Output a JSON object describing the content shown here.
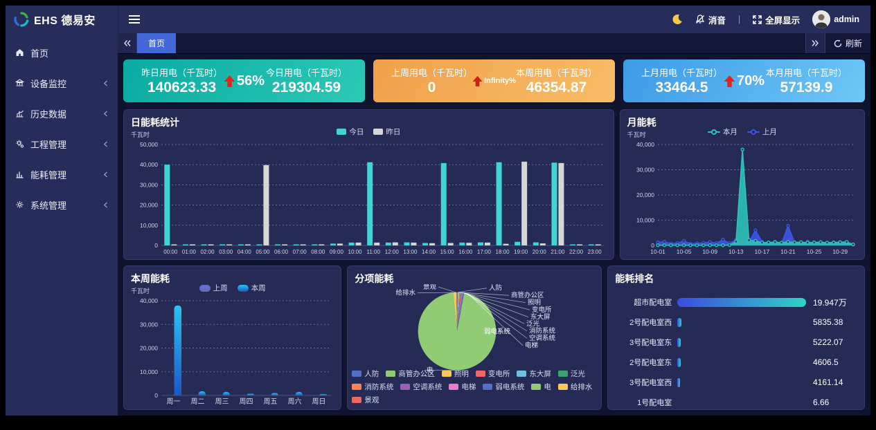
{
  "navbar": {
    "logo_text": "EHS 德易安",
    "mute_label": "消音",
    "separator": "|",
    "fullscreen_label": "全屏显示",
    "username": "admin"
  },
  "sidebar": {
    "items": [
      {
        "label": "首页",
        "icon": "home-icon",
        "expandable": false
      },
      {
        "label": "设备监控",
        "icon": "device-monitor-icon",
        "expandable": true
      },
      {
        "label": "历史数据",
        "icon": "history-data-icon",
        "expandable": true
      },
      {
        "label": "工程管理",
        "icon": "project-manage-icon",
        "expandable": true
      },
      {
        "label": "能耗管理",
        "icon": "energy-manage-icon",
        "expandable": true
      },
      {
        "label": "系统管理",
        "icon": "system-manage-icon",
        "expandable": true
      }
    ]
  },
  "tabbar": {
    "active_tab": "首页",
    "refresh_label": "刷新"
  },
  "kpi_cards": [
    {
      "left_label": "昨日用电（千瓦时）",
      "left_value": "140623.33",
      "delta": "56%",
      "right_label": "今日用电（千瓦时）",
      "right_value": "219304.59",
      "gradient": [
        "#0baaa2",
        "#2cc9b6"
      ],
      "delta_color": "#e0251c"
    },
    {
      "left_label": "上周用电（千瓦时）",
      "left_value": "0",
      "delta": "Infinity%",
      "right_label": "本周用电（千瓦时）",
      "right_value": "46354.87",
      "gradient": [
        "#f0a04b",
        "#f8bc66"
      ],
      "delta_color": "#d01f16"
    },
    {
      "left_label": "上月用电（千瓦时）",
      "left_value": "33464.5",
      "delta": "70%",
      "right_label": "本月用电（千瓦时）",
      "right_value": "57139.9",
      "gradient": [
        "#3d9ae6",
        "#6ec7f6"
      ],
      "delta_color": "#e0251c"
    }
  ],
  "chart_data": [
    {
      "type": "bar",
      "title": "日能耗统计",
      "ylabel": "千瓦时",
      "ylim": [
        0,
        50000
      ],
      "ystep": 10000,
      "grid": true,
      "legend_position": "top-center",
      "categories": [
        "00:00",
        "01:00",
        "02:00",
        "03:00",
        "04:00",
        "05:00",
        "06:00",
        "07:00",
        "08:00",
        "09:00",
        "10:00",
        "11:00",
        "12:00",
        "13:00",
        "14:00",
        "15:00",
        "16:00",
        "17:00",
        "18:00",
        "19:00",
        "20:00",
        "21:00",
        "22:00",
        "23:00"
      ],
      "series": [
        {
          "name": "今日",
          "color": "#41d4d4",
          "values": [
            40000,
            300,
            300,
            300,
            300,
            400,
            300,
            300,
            500,
            900,
            1400,
            41200,
            1400,
            1500,
            1200,
            40800,
            1400,
            1500,
            41200,
            1800,
            1500,
            41000,
            400,
            300
          ]
        },
        {
          "name": "昨日",
          "color": "#d6d6d6",
          "values": [
            300,
            300,
            300,
            300,
            300,
            39800,
            300,
            300,
            500,
            900,
            1400,
            1400,
            1500,
            1400,
            1100,
            1200,
            1300,
            1400,
            800,
            41500,
            1000,
            40800,
            400,
            400
          ]
        }
      ]
    },
    {
      "type": "line",
      "title": "月能耗",
      "ylabel": "千瓦时",
      "ylim": [
        0,
        40000
      ],
      "ystep": 10000,
      "grid": true,
      "legend_position": "top-center",
      "x": [
        "10-01",
        "10-02",
        "10-03",
        "10-04",
        "10-05",
        "10-06",
        "10-07",
        "10-08",
        "10-09",
        "10-10",
        "10-11",
        "10-12",
        "10-13",
        "10-14",
        "10-15",
        "10-16",
        "10-17",
        "10-18",
        "10-19",
        "10-20",
        "10-21",
        "10-22",
        "10-23",
        "10-24",
        "10-25",
        "10-26",
        "10-27",
        "10-28",
        "10-29",
        "10-30",
        "10-31"
      ],
      "xtick_every": 4,
      "series": [
        {
          "name": "本月",
          "color": "#2fc2b8",
          "fill_opacity": 0.9,
          "values": [
            80,
            80,
            80,
            80,
            80,
            80,
            80,
            80,
            80,
            80,
            80,
            150,
            1500,
            38000,
            2100,
            1800,
            1100,
            1200,
            1300,
            1100,
            1400,
            1200,
            1300,
            1100,
            1200,
            1300,
            1100,
            1200,
            1300,
            1400,
            400
          ]
        },
        {
          "name": "上月",
          "color": "#3d55e6",
          "fill_opacity": 0.9,
          "values": [
            1200,
            1500,
            700,
            900,
            1800,
            700,
            800,
            1000,
            1400,
            900,
            2300,
            900,
            2100,
            500,
            1500,
            6000,
            1500,
            500,
            1500,
            700,
            7800,
            1300,
            600,
            1500,
            900,
            1100,
            900,
            800,
            700,
            600,
            300
          ]
        }
      ]
    },
    {
      "type": "bar",
      "title": "本周能耗",
      "ylabel": "千瓦时",
      "ylim": [
        0,
        40000
      ],
      "ystep": 10000,
      "grid": true,
      "rounded": true,
      "legend_position": "top-center",
      "categories": [
        "周一",
        "周二",
        "周三",
        "周四",
        "周五",
        "周六",
        "周日"
      ],
      "series": [
        {
          "name": "上周",
          "color": "#6470c8",
          "values": [
            0,
            0,
            0,
            0,
            0,
            0,
            0
          ]
        },
        {
          "name": "本周",
          "color": "#23b1e8",
          "gradient": [
            "#2bc4ee",
            "#1b57c8"
          ],
          "values": [
            38000,
            1800,
            1500,
            700,
            1000,
            1500,
            500
          ]
        }
      ]
    },
    {
      "type": "pie",
      "title": "分项能耗",
      "legend_position": "bottom",
      "slices": [
        {
          "name": "人防",
          "value": 0.3,
          "color": "#5470c6",
          "label": {
            "x": 196,
            "y": 10,
            "anchor": "start",
            "angle": 1
          }
        },
        {
          "name": "商管办公区",
          "value": 0.3,
          "color": "#91cc75",
          "label": {
            "x": 228,
            "y": 22,
            "anchor": "start",
            "angle": 3
          }
        },
        {
          "name": "照明",
          "value": 0.25,
          "color": "#fac858",
          "label": {
            "x": 252,
            "y": 34,
            "anchor": "start",
            "angle": 5
          }
        },
        {
          "name": "变电所",
          "value": 0.25,
          "color": "#ee6666",
          "label": {
            "x": 258,
            "y": 46,
            "anchor": "start",
            "angle": 7
          }
        },
        {
          "name": "东大屏",
          "value": 0.2,
          "color": "#73c0de",
          "label": {
            "x": 256,
            "y": 58,
            "anchor": "start",
            "angle": 9
          }
        },
        {
          "name": "泛光",
          "value": 0.2,
          "color": "#3ba272",
          "label": {
            "x": 250,
            "y": 69,
            "anchor": "start",
            "angle": 11
          }
        },
        {
          "name": "消防系统",
          "value": 0.25,
          "color": "#fc8452",
          "label": {
            "x": 254,
            "y": 81,
            "anchor": "start",
            "angle": 13
          }
        },
        {
          "name": "空调系统",
          "value": 0.35,
          "color": "#9a60b4",
          "label": {
            "x": 254,
            "y": 93,
            "anchor": "start",
            "angle": 15
          }
        },
        {
          "name": "电梯",
          "value": 0.25,
          "color": "#ea7ccc",
          "label": {
            "x": 248,
            "y": 105,
            "anchor": "start",
            "angle": 17
          }
        },
        {
          "name": "弱电系统",
          "value": 0.6,
          "color": "#5470c6",
          "label": {
            "x": 208,
            "y": 82,
            "anchor": "middle",
            "inside": true
          }
        },
        {
          "name": "电",
          "value": 95.15,
          "color": "#91cc75",
          "label": {
            "x": 106,
            "y": 146,
            "anchor": "start",
            "angle": 183
          }
        },
        {
          "name": "给排水",
          "value": 1.3,
          "color": "#fac858",
          "label": {
            "x": 90,
            "y": 18,
            "anchor": "end",
            "angle": -6
          }
        },
        {
          "name": "景观",
          "value": 0.3,
          "color": "#ee6666",
          "label": {
            "x": 120,
            "y": 8,
            "anchor": "end",
            "angle": -2
          }
        }
      ]
    },
    {
      "type": "hbar",
      "title": "能耗排名",
      "bar_gradient": [
        "#3b4ce0",
        "#2fd3c6"
      ],
      "items": [
        {
          "name": "超市配电室",
          "value": "19.947万",
          "numeric": 199470
        },
        {
          "name": "2号配电室西",
          "value": "5835.38",
          "numeric": 5835.38
        },
        {
          "name": "3号配电室东",
          "value": "5222.07",
          "numeric": 5222.07
        },
        {
          "name": "2号配电室东",
          "value": "4606.5",
          "numeric": 4606.5
        },
        {
          "name": "3号配电室西",
          "value": "4161.14",
          "numeric": 4161.14
        },
        {
          "name": "1号配电室",
          "value": "6.66",
          "numeric": 6.66
        }
      ]
    }
  ]
}
